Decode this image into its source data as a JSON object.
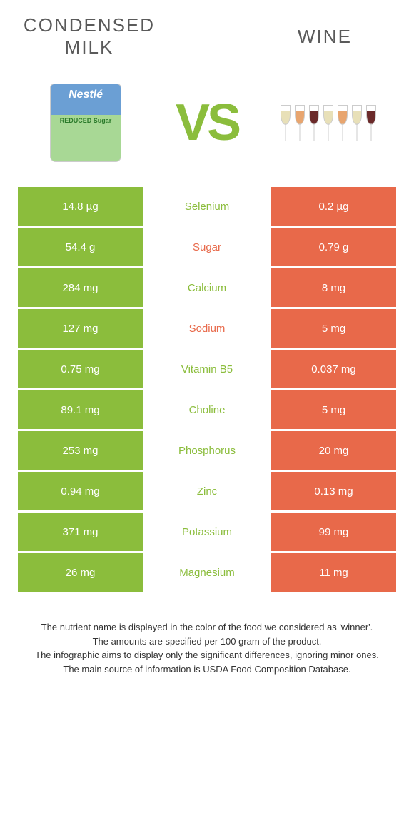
{
  "colors": {
    "left": "#8bbd3c",
    "right": "#e8694a",
    "text": "#5a5a5a"
  },
  "header": {
    "left_title": "CONDENSED MILK",
    "right_title": "WINE",
    "vs": "VS"
  },
  "rows": [
    {
      "left": "14.8 µg",
      "mid": "Selenium",
      "right": "0.2 µg",
      "winner": "left"
    },
    {
      "left": "54.4 g",
      "mid": "Sugar",
      "right": "0.79 g",
      "winner": "right"
    },
    {
      "left": "284 mg",
      "mid": "Calcium",
      "right": "8 mg",
      "winner": "left"
    },
    {
      "left": "127 mg",
      "mid": "Sodium",
      "right": "5 mg",
      "winner": "right"
    },
    {
      "left": "0.75 mg",
      "mid": "Vitamin B5",
      "right": "0.037 mg",
      "winner": "left"
    },
    {
      "left": "89.1 mg",
      "mid": "Choline",
      "right": "5 mg",
      "winner": "left"
    },
    {
      "left": "253 mg",
      "mid": "Phosphorus",
      "right": "20 mg",
      "winner": "left"
    },
    {
      "left": "0.94 mg",
      "mid": "Zinc",
      "right": "0.13 mg",
      "winner": "left"
    },
    {
      "left": "371 mg",
      "mid": "Potassium",
      "right": "99 mg",
      "winner": "left"
    },
    {
      "left": "26 mg",
      "mid": "Magnesium",
      "right": "11 mg",
      "winner": "left"
    }
  ],
  "footnotes": [
    "The nutrient name is displayed in the color of the food we considered as 'winner'.",
    "The amounts are specified per 100 gram of the product.",
    "The infographic aims to display only the significant differences, ignoring minor ones.",
    "The main source of information is USDA Food Composition Database."
  ]
}
